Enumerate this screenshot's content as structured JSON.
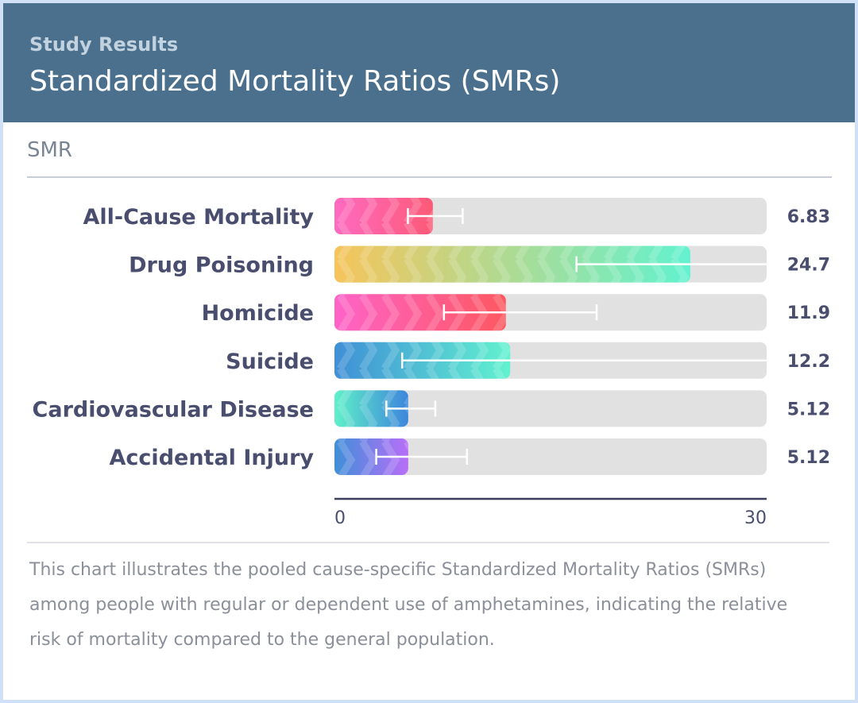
{
  "header": {
    "eyebrow": "Study Results",
    "title": "Standardized Mortality Ratios (SMRs)"
  },
  "section_label": "SMR",
  "chart_data": {
    "type": "bar",
    "orientation": "horizontal",
    "categories": [
      "All-Cause Mortality",
      "Drug Poisoning",
      "Homicide",
      "Suicide",
      "Cardiovascular Disease",
      "Accidental Injury"
    ],
    "values": [
      6.83,
      24.7,
      11.9,
      12.2,
      5.12,
      5.12
    ],
    "value_labels": [
      "6.83",
      "24.7",
      "11.9",
      "12.2",
      "5.12",
      "5.12"
    ],
    "ci": [
      [
        5.1,
        8.9
      ],
      [
        16.8,
        30
      ],
      [
        7.6,
        18.2
      ],
      [
        4.7,
        30
      ],
      [
        3.6,
        7.0
      ],
      [
        2.9,
        9.2
      ]
    ],
    "xlim": [
      0,
      30
    ],
    "ticks": [
      "0",
      "30"
    ],
    "bar_gradients": [
      [
        "#fe6ac0",
        "#fd5a78"
      ],
      [
        "#f6c45a",
        "#62f2cf"
      ],
      [
        "#fe63c8",
        "#fd5860"
      ],
      [
        "#3f8fd6",
        "#62f2d0"
      ],
      [
        "#5ff0c8",
        "#3d86dc"
      ],
      [
        "#3f8fd8",
        "#b86ef8"
      ]
    ],
    "track_color": "#e1e1e1",
    "error_bar_color": "#ffffff"
  },
  "note": "This chart illustrates the pooled cause-specific Standardized Mortality Ratios (SMRs) among people with regular or dependent use of amphetamines, indicating the relative risk of mortality compared to the general population."
}
